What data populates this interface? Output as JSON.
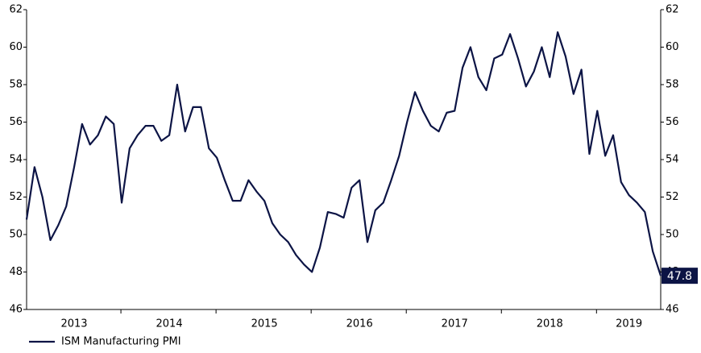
{
  "chart_data": {
    "type": "line",
    "categories": [
      null,
      null,
      null,
      null,
      null,
      null,
      "2013",
      null,
      null,
      null,
      null,
      null,
      null,
      null,
      null,
      null,
      null,
      null,
      "2014",
      null,
      null,
      null,
      null,
      null,
      null,
      null,
      null,
      null,
      null,
      null,
      "2015",
      null,
      null,
      null,
      null,
      null,
      null,
      null,
      null,
      null,
      null,
      null,
      "2016",
      null,
      null,
      null,
      null,
      null,
      null,
      null,
      null,
      null,
      null,
      null,
      "2017",
      null,
      null,
      null,
      null,
      null,
      null,
      null,
      null,
      null,
      null,
      null,
      "2018",
      null,
      null,
      null,
      null,
      null,
      null,
      null,
      null,
      null,
      "2019",
      null,
      null,
      null,
      null
    ],
    "series": [
      {
        "name": "ISM Manufacturing PMI",
        "color": "#0c1445",
        "values": [
          50.8,
          53.6,
          52,
          49.7,
          50.5,
          51.5,
          53.6,
          55.9,
          54.8,
          55.3,
          56.3,
          55.9,
          51.7,
          54.6,
          55.3,
          55.8,
          55.8,
          55,
          55.3,
          58,
          55.5,
          56.8,
          56.8,
          54.6,
          54.1,
          52.9,
          51.8,
          51.8,
          52.9,
          52.3,
          51.8,
          50.6,
          50,
          49.6,
          48.9,
          48.4,
          48,
          49.3,
          51.2,
          51.1,
          50.9,
          52.5,
          52.9,
          49.6,
          51.3,
          51.7,
          52.9,
          54.2,
          56,
          57.6,
          56.6,
          55.8,
          55.5,
          56.5,
          56.6,
          58.9,
          60,
          58.4,
          57.7,
          59.4,
          59.6,
          60.7,
          59.4,
          57.9,
          58.7,
          60,
          58.4,
          60.8,
          59.5,
          57.5,
          58.8,
          54.3,
          56.6,
          54.2,
          55.3,
          52.8,
          52.1,
          51.7,
          51.2,
          49.1,
          47.8
        ],
        "value_labels": [
          null,
          null,
          null,
          null,
          null,
          null,
          null,
          null,
          null,
          null,
          null,
          null,
          null,
          null,
          null,
          null,
          null,
          null,
          null,
          null,
          null,
          null,
          null,
          null,
          null,
          null,
          null,
          null,
          null,
          null,
          null,
          null,
          null,
          null,
          null,
          null,
          null,
          null,
          null,
          null,
          null,
          null,
          null,
          null,
          null,
          null,
          null,
          null,
          null,
          null,
          null,
          null,
          null,
          null,
          null,
          null,
          null,
          null,
          null,
          null,
          null,
          null,
          null,
          null,
          null,
          null,
          null,
          null,
          null,
          null,
          null,
          null,
          null,
          null,
          null,
          null,
          null,
          null,
          null,
          null,
          "47.8"
        ]
      }
    ],
    "ylim": [
      46,
      62
    ],
    "yticks": [
      46,
      48,
      50,
      52,
      54,
      56,
      58,
      60,
      62
    ],
    "y2lim": [
      46,
      62
    ],
    "y2ticks": [
      46,
      48,
      50,
      52,
      54,
      56,
      58,
      60,
      62
    ],
    "legend": "bottom-left"
  }
}
